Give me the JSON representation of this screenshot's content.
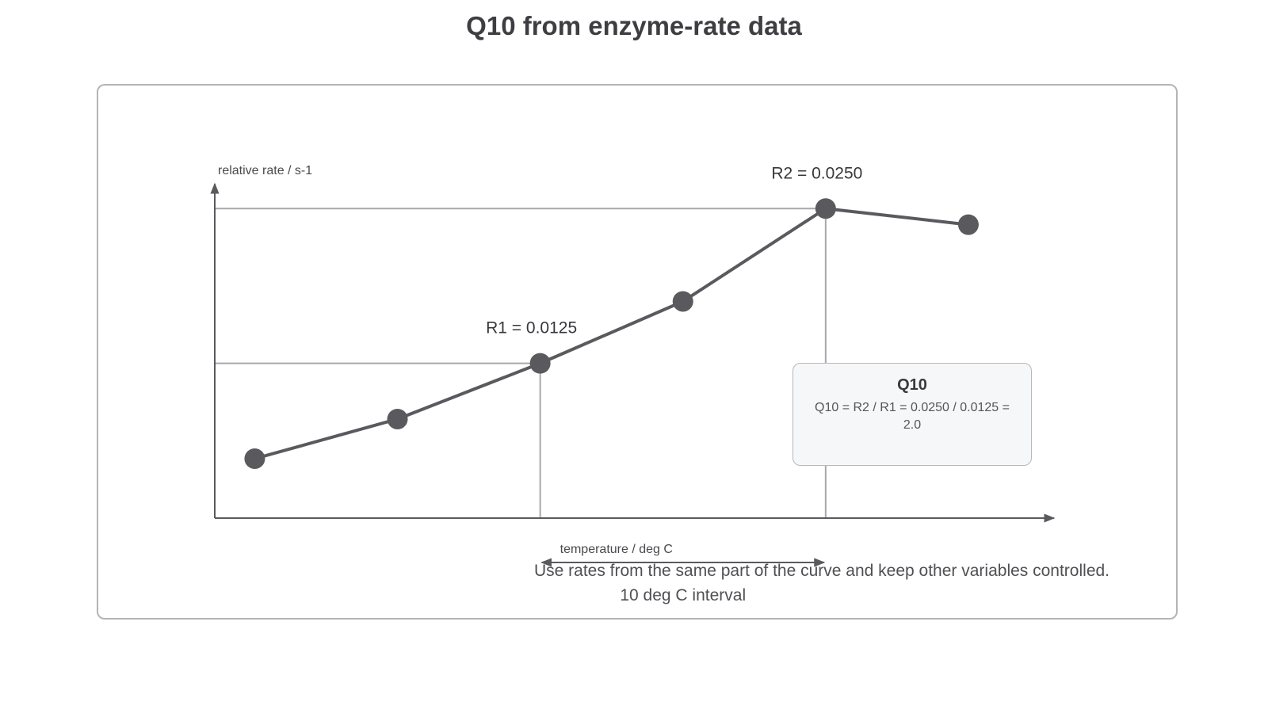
{
  "chart_data": {
    "type": "line",
    "title": "Q10 from enzyme-rate data",
    "xlabel": "temperature / deg C",
    "ylabel": "relative rate / s-1",
    "x": [
      1,
      2,
      3,
      4,
      5,
      6
    ],
    "series": [
      {
        "values": [
          0.0048,
          0.008,
          0.0125,
          0.0175,
          0.025,
          0.0237
        ]
      }
    ],
    "ylim": [
      0,
      0.027
    ],
    "xlim": [
      0.72,
      6.6
    ],
    "grid": false,
    "annotations": {
      "r1_label": "R1 = 0.0125",
      "r2_label": "R2 = 0.0250",
      "r1_index": 2,
      "r2_index": 4,
      "interval_label": "10 deg C interval",
      "note": "Use rates from the same part of the curve and keep other variables controlled."
    },
    "callout": {
      "title": "Q10",
      "text": "Q10 = R2 / R1 = 0.0250 / 0.0125 = 2.0"
    },
    "colors": {
      "line": "#5a5a5e",
      "point": "#5a5a5e",
      "guide": "#a8a8ac",
      "axis": "#5a5a5e"
    }
  }
}
